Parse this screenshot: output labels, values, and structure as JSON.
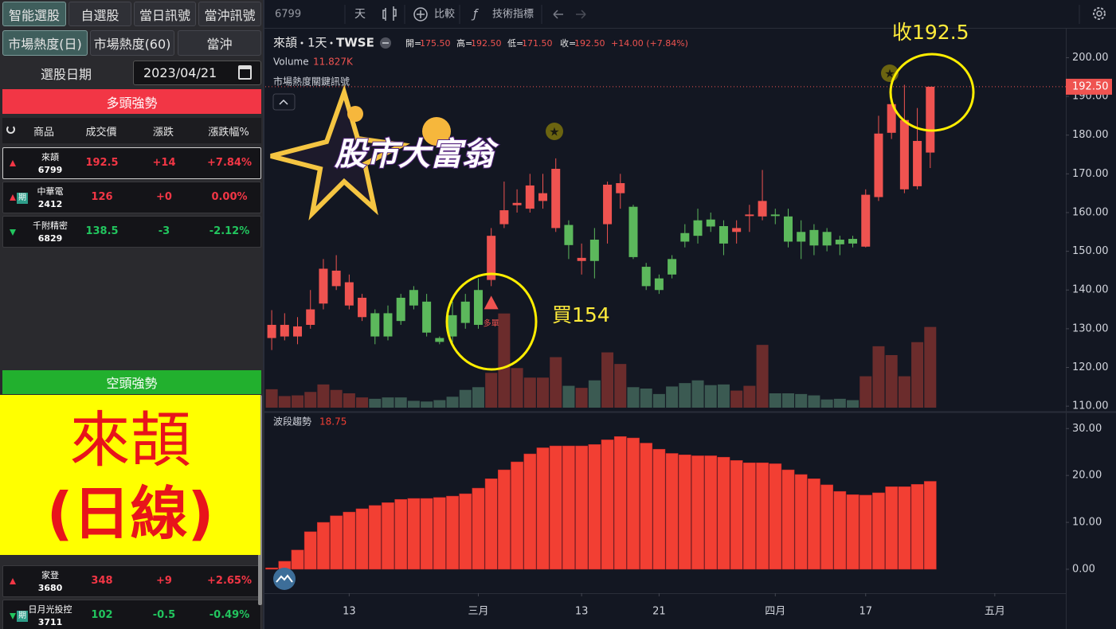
{
  "sidebar": {
    "tabs": [
      "智能選股",
      "自選股",
      "當日訊號",
      "當沖訊號",
      "市場熱度(日)",
      "市場熱度(60)",
      "當沖"
    ],
    "active_tabs": [
      0,
      4
    ],
    "date_label": "選股日期",
    "date": "2023/04/21",
    "bull_title": "多頭強勢",
    "columns": [
      "商品",
      "成交價",
      "漲跌",
      "漲跌幅%"
    ],
    "bull_rows": [
      {
        "name": "來頡",
        "code": "6799",
        "price": "192.5",
        "change": "+14",
        "pct": "+7.84%",
        "trend": "up"
      },
      {
        "name": "中華電",
        "code": "2412",
        "badge": "期",
        "price": "126",
        "change": "+0",
        "pct": "0.00%",
        "trend": "up"
      },
      {
        "name": "千附精密",
        "code": "6829",
        "price": "138.5",
        "change": "-3",
        "pct": "-2.12%",
        "trend": "down"
      }
    ],
    "bear_title": "空頭強勢",
    "bear_rows": [
      {
        "name": "家登",
        "code": "3680",
        "price": "348",
        "change": "+9",
        "pct": "+2.65%",
        "trend": "up"
      },
      {
        "name": "日月光投控",
        "code": "3711",
        "badge": "期",
        "price": "102",
        "change": "-0.5",
        "pct": "-0.49%",
        "trend": "down"
      }
    ]
  },
  "overlay": {
    "line1": "來頡",
    "line2": "(日線)"
  },
  "toolbar": {
    "symbol": "6799",
    "interval": "天",
    "compare": "比較",
    "indicators": "技術指標"
  },
  "logo": "股市大富翁",
  "annotations": {
    "buy": "買154",
    "close": "收192.5"
  },
  "chart_data": [
    {
      "type": "candlestick",
      "title": "來頡",
      "interval": "1天",
      "exchange": "TWSE",
      "ohlc_labels": [
        "開=",
        "高=",
        "低=",
        "收="
      ],
      "ohlc_values": [
        "175.50",
        "192.50",
        "171.50",
        "192.50"
      ],
      "change": "+14.00 (+7.84%)",
      "volume_title": "Volume",
      "volume_label": "11.827K",
      "indicator_title": "市場熱度關鍵訊號",
      "open": [
        127.6,
        128,
        128,
        131,
        136.5,
        141,
        136,
        133,
        134,
        134,
        138,
        140,
        137,
        127.6,
        133.5,
        137,
        140,
        142.6,
        157,
        161.9,
        161,
        163,
        156,
        156.8,
        147.5,
        153,
        157,
        165,
        161.5,
        146,
        143,
        148,
        154.7,
        158,
        158.2,
        156.5,
        155,
        159.1,
        159,
        159.5,
        159,
        155,
        155.5,
        155,
        153,
        153.2,
        151.2,
        164,
        180.6,
        166,
        166.8,
        175.5
      ],
      "high": [
        134.8,
        134,
        133,
        140,
        148,
        149,
        144,
        139,
        135,
        136,
        139,
        141,
        139,
        128,
        137,
        139,
        143,
        156,
        168,
        166,
        170,
        170,
        174,
        158,
        152,
        156,
        168,
        170,
        162,
        147,
        144,
        149,
        157,
        161,
        160,
        158,
        158,
        162,
        171,
        161,
        161,
        158,
        157,
        156,
        154,
        154,
        166,
        185,
        190,
        193,
        187,
        192.5
      ],
      "low": [
        124.5,
        127,
        126,
        130,
        135,
        140,
        135,
        132,
        126,
        127,
        131,
        135,
        128,
        126,
        126,
        130,
        130,
        141,
        156,
        160,
        160,
        161,
        155,
        148,
        144,
        143,
        152,
        161,
        148,
        140,
        139,
        143,
        151,
        152,
        155,
        149,
        152,
        155,
        158,
        157,
        151,
        148,
        149,
        150,
        149,
        151,
        151,
        163,
        179,
        165,
        166,
        171.5
      ],
      "close": [
        131,
        131,
        130.6,
        135,
        145.5,
        145,
        142,
        138,
        128,
        128,
        132,
        136,
        129,
        126.6,
        128,
        131.5,
        131,
        154,
        160.6,
        162.5,
        167,
        165,
        171.3,
        151.6,
        148.3,
        147.5,
        167.2,
        167.6,
        148.5,
        141,
        140,
        144,
        152.5,
        154,
        156.4,
        152,
        156,
        159.5,
        163,
        159.1,
        152.5,
        152.5,
        151.5,
        151.5,
        151.8,
        152,
        164.6,
        180.4,
        188,
        183.9,
        178.5,
        192.5
      ],
      "volume": [
        2.7,
        1.7,
        1.8,
        2.3,
        3.4,
        2.6,
        2.1,
        1.5,
        1.3,
        1.5,
        1.5,
        1.0,
        0.9,
        1.1,
        1.6,
        2.6,
        3.0,
        5.1,
        13.8,
        5.8,
        4.4,
        4.4,
        7.4,
        3.2,
        2.9,
        4.0,
        8.1,
        6.4,
        3.0,
        2.8,
        2.0,
        3.1,
        3.6,
        4.0,
        3.3,
        3.4,
        2.5,
        3.2,
        9.2,
        2.1,
        2.1,
        2.0,
        1.8,
        1.2,
        1.3,
        1.1,
        4.6,
        9.0,
        7.7,
        4.6,
        9.6,
        11.827
      ],
      "volume_lim": [
        0,
        14
      ],
      "up_color": "#ef5350",
      "down_color": "#5cb85c",
      "volume_up_color": "#6b2c2c",
      "volume_down_color": "#3b5a52",
      "xlim": [
        -0.5,
        61.5
      ],
      "xticks": [
        {
          "value": 6,
          "label": "13"
        },
        {
          "value": 16,
          "label": "三月"
        },
        {
          "value": 24,
          "label": "13"
        },
        {
          "value": 30,
          "label": "21"
        },
        {
          "value": 39,
          "label": "四月"
        },
        {
          "value": 46,
          "label": "17"
        },
        {
          "value": 56,
          "label": "五月"
        }
      ],
      "ylim": [
        109,
        207.7
      ],
      "yticks": [
        {
          "value": 110,
          "label": "110.00"
        },
        {
          "value": 120,
          "label": "120.00"
        },
        {
          "value": 130,
          "label": "130.00"
        },
        {
          "value": 140,
          "label": "140.00"
        },
        {
          "value": 150,
          "label": "150.00"
        },
        {
          "value": 160,
          "label": "160.00"
        },
        {
          "value": 170,
          "label": "170.00"
        },
        {
          "value": 180,
          "label": "180.00"
        },
        {
          "value": 190,
          "label": "190.00"
        },
        {
          "value": 200,
          "label": "200.00"
        }
      ],
      "last_price": {
        "value": 192.5,
        "label": "192.50"
      },
      "signal": {
        "index": 17,
        "label": "多單"
      },
      "grid": false
    },
    {
      "type": "bar",
      "title": "波段趨勢",
      "color": "#f23f33",
      "values": [
        0.3,
        1.7,
        4.1,
        8,
        10,
        11.4,
        12.2,
        12.9,
        13.6,
        14.2,
        14.9,
        15.1,
        15.1,
        15.3,
        15.6,
        16.1,
        17.3,
        19.3,
        21.2,
        22.9,
        24.6,
        25.9,
        26.3,
        26.3,
        26.3,
        26.6,
        27.6,
        28.3,
        28,
        26.9,
        25.6,
        24.7,
        24.4,
        24.2,
        24.2,
        23.9,
        23.2,
        22.7,
        22.7,
        22.5,
        21.2,
        20.2,
        19.3,
        18,
        16.6,
        15.9,
        15.8,
        16.3,
        17.6,
        17.6,
        18.1,
        18.75
      ],
      "xlim": [
        -0.5,
        61.5
      ],
      "ylim": [
        -5.1,
        33.1
      ],
      "yticks": [
        {
          "value": 0,
          "label": "0.00"
        },
        {
          "value": 10,
          "label": "10.00"
        },
        {
          "value": 20,
          "label": "20.00"
        },
        {
          "value": 30,
          "label": "30.00"
        }
      ],
      "grid": false
    }
  ]
}
